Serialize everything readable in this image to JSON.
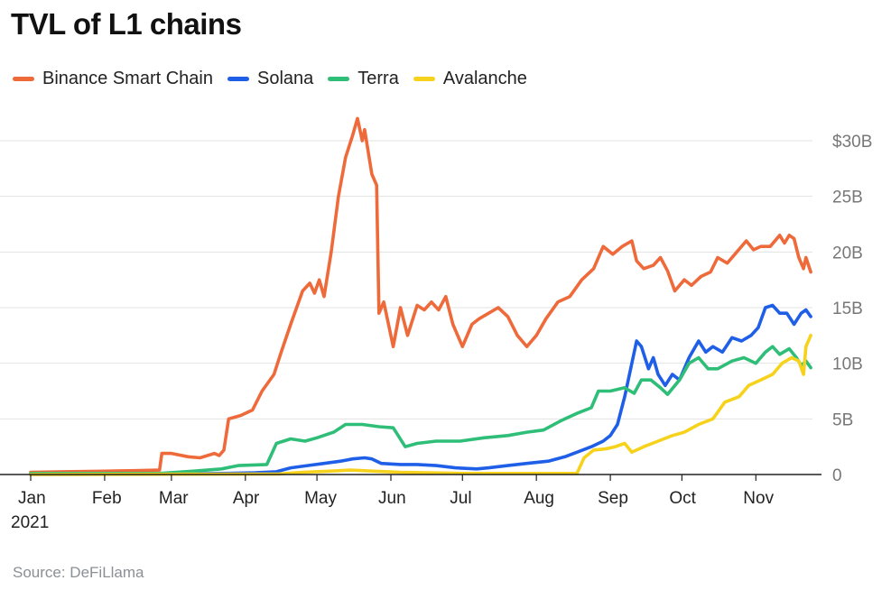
{
  "title": "TVL of L1 chains",
  "source": "Source: DeFiLlama",
  "colors": {
    "bsc": "#ef6a3a",
    "solana": "#1f5fe8",
    "terra": "#2fbe78",
    "avalanche": "#f7d21c",
    "grid": "#e3e3e3",
    "axis": "#222222",
    "tick": "#777777"
  },
  "chart_data": {
    "type": "line",
    "title": "TVL of L1 chains",
    "xlabel": "",
    "ylabel": "",
    "x_tick_labels": [
      "Jan",
      "Feb",
      "Mar",
      "Apr",
      "May",
      "Jun",
      "Jul",
      "Aug",
      "Sep",
      "Oct",
      "Nov"
    ],
    "x_year_label": "2021",
    "x_range": [
      "2021-01-01",
      "2021-11-27"
    ],
    "y_tick_labels": [
      "0",
      "5B",
      "10B",
      "15B",
      "20B",
      "25B",
      "$30B"
    ],
    "y_ticks": [
      0,
      5,
      10,
      15,
      20,
      25,
      30
    ],
    "ylim": [
      0,
      30
    ],
    "y_unit": "billion USD",
    "grid": true,
    "legend_position": "top-left",
    "series": [
      {
        "name": "Binance Smart Chain",
        "color": "#ef6a3a",
        "points": [
          [
            "2021-01-01",
            0.2
          ],
          [
            "2021-01-15",
            0.25
          ],
          [
            "2021-02-01",
            0.3
          ],
          [
            "2021-02-14",
            0.35
          ],
          [
            "2021-02-24",
            0.4
          ],
          [
            "2021-02-25",
            1.9
          ],
          [
            "2021-03-01",
            1.9
          ],
          [
            "2021-03-08",
            1.6
          ],
          [
            "2021-03-13",
            1.5
          ],
          [
            "2021-03-19",
            1.9
          ],
          [
            "2021-03-21",
            1.7
          ],
          [
            "2021-03-23",
            2.2
          ],
          [
            "2021-03-25",
            5.0
          ],
          [
            "2021-03-30",
            5.3
          ],
          [
            "2021-04-04",
            5.8
          ],
          [
            "2021-04-08",
            7.5
          ],
          [
            "2021-04-13",
            9.0
          ],
          [
            "2021-04-16",
            11.0
          ],
          [
            "2021-04-20",
            13.5
          ],
          [
            "2021-04-25",
            16.5
          ],
          [
            "2021-04-28",
            17.2
          ],
          [
            "2021-04-30",
            16.3
          ],
          [
            "2021-05-02",
            17.5
          ],
          [
            "2021-05-04",
            16.0
          ],
          [
            "2021-05-07",
            20.0
          ],
          [
            "2021-05-10",
            25.0
          ],
          [
            "2021-05-13",
            28.5
          ],
          [
            "2021-05-16",
            30.5
          ],
          [
            "2021-05-18",
            32.0
          ],
          [
            "2021-05-20",
            30.0
          ],
          [
            "2021-05-21",
            31.0
          ],
          [
            "2021-05-24",
            27.0
          ],
          [
            "2021-05-26",
            26.0
          ],
          [
            "2021-05-27",
            14.5
          ],
          [
            "2021-05-29",
            15.5
          ],
          [
            "2021-06-02",
            11.5
          ],
          [
            "2021-06-05",
            15.0
          ],
          [
            "2021-06-08",
            12.5
          ],
          [
            "2021-06-12",
            15.2
          ],
          [
            "2021-06-15",
            14.8
          ],
          [
            "2021-06-18",
            15.5
          ],
          [
            "2021-06-21",
            14.8
          ],
          [
            "2021-06-24",
            16.0
          ],
          [
            "2021-06-27",
            13.5
          ],
          [
            "2021-07-01",
            11.5
          ],
          [
            "2021-07-05",
            13.5
          ],
          [
            "2021-07-08",
            14.0
          ],
          [
            "2021-07-12",
            14.5
          ],
          [
            "2021-07-16",
            15.0
          ],
          [
            "2021-07-20",
            14.2
          ],
          [
            "2021-07-24",
            12.5
          ],
          [
            "2021-07-28",
            11.5
          ],
          [
            "2021-08-01",
            12.5
          ],
          [
            "2021-08-05",
            14.0
          ],
          [
            "2021-08-10",
            15.5
          ],
          [
            "2021-08-15",
            16.0
          ],
          [
            "2021-08-20",
            17.5
          ],
          [
            "2021-08-25",
            18.5
          ],
          [
            "2021-08-29",
            20.5
          ],
          [
            "2021-09-02",
            19.8
          ],
          [
            "2021-09-06",
            20.5
          ],
          [
            "2021-09-10",
            21.0
          ],
          [
            "2021-09-12",
            19.2
          ],
          [
            "2021-09-15",
            18.5
          ],
          [
            "2021-09-19",
            18.8
          ],
          [
            "2021-09-22",
            19.5
          ],
          [
            "2021-09-25",
            18.3
          ],
          [
            "2021-09-28",
            16.5
          ],
          [
            "2021-10-02",
            17.5
          ],
          [
            "2021-10-05",
            17.0
          ],
          [
            "2021-10-09",
            17.8
          ],
          [
            "2021-10-13",
            18.2
          ],
          [
            "2021-10-16",
            19.5
          ],
          [
            "2021-10-20",
            19.0
          ],
          [
            "2021-10-24",
            20.0
          ],
          [
            "2021-10-28",
            21.0
          ],
          [
            "2021-10-31",
            20.2
          ],
          [
            "2021-11-03",
            20.5
          ],
          [
            "2021-11-07",
            20.5
          ],
          [
            "2021-11-11",
            21.5
          ],
          [
            "2021-11-13",
            20.8
          ],
          [
            "2021-11-15",
            21.5
          ],
          [
            "2021-11-17",
            21.2
          ],
          [
            "2021-11-19",
            19.5
          ],
          [
            "2021-11-21",
            18.5
          ],
          [
            "2021-11-22",
            19.5
          ],
          [
            "2021-11-24",
            18.2
          ]
        ]
      },
      {
        "name": "Solana",
        "color": "#1f5fe8",
        "points": [
          [
            "2021-01-01",
            0.0
          ],
          [
            "2021-03-01",
            0.05
          ],
          [
            "2021-03-22",
            0.1
          ],
          [
            "2021-04-05",
            0.15
          ],
          [
            "2021-04-14",
            0.25
          ],
          [
            "2021-04-20",
            0.6
          ],
          [
            "2021-04-27",
            0.8
          ],
          [
            "2021-05-04",
            1.0
          ],
          [
            "2021-05-11",
            1.2
          ],
          [
            "2021-05-16",
            1.4
          ],
          [
            "2021-05-21",
            1.5
          ],
          [
            "2021-05-24",
            1.4
          ],
          [
            "2021-05-28",
            1.0
          ],
          [
            "2021-06-05",
            0.9
          ],
          [
            "2021-06-12",
            0.9
          ],
          [
            "2021-06-20",
            0.8
          ],
          [
            "2021-06-28",
            0.6
          ],
          [
            "2021-07-07",
            0.5
          ],
          [
            "2021-07-12",
            0.6
          ],
          [
            "2021-07-20",
            0.8
          ],
          [
            "2021-07-28",
            1.0
          ],
          [
            "2021-08-06",
            1.2
          ],
          [
            "2021-08-13",
            1.6
          ],
          [
            "2021-08-18",
            2.0
          ],
          [
            "2021-08-24",
            2.5
          ],
          [
            "2021-08-29",
            3.0
          ],
          [
            "2021-09-01",
            3.5
          ],
          [
            "2021-09-04",
            4.5
          ],
          [
            "2021-09-07",
            7.0
          ],
          [
            "2021-09-10",
            10.0
          ],
          [
            "2021-09-12",
            12.0
          ],
          [
            "2021-09-14",
            11.5
          ],
          [
            "2021-09-17",
            9.5
          ],
          [
            "2021-09-19",
            10.5
          ],
          [
            "2021-09-21",
            9.0
          ],
          [
            "2021-09-24",
            8.0
          ],
          [
            "2021-09-27",
            9.0
          ],
          [
            "2021-09-30",
            8.5
          ],
          [
            "2021-10-04",
            10.5
          ],
          [
            "2021-10-08",
            12.0
          ],
          [
            "2021-10-11",
            11.0
          ],
          [
            "2021-10-14",
            11.5
          ],
          [
            "2021-10-18",
            11.0
          ],
          [
            "2021-10-22",
            12.3
          ],
          [
            "2021-10-26",
            12.0
          ],
          [
            "2021-10-30",
            12.5
          ],
          [
            "2021-11-02",
            13.2
          ],
          [
            "2021-11-05",
            15.0
          ],
          [
            "2021-11-08",
            15.2
          ],
          [
            "2021-11-11",
            14.5
          ],
          [
            "2021-11-14",
            14.5
          ],
          [
            "2021-11-17",
            13.5
          ],
          [
            "2021-11-20",
            14.5
          ],
          [
            "2021-11-22",
            14.8
          ],
          [
            "2021-11-24",
            14.2
          ]
        ]
      },
      {
        "name": "Terra",
        "color": "#2fbe78",
        "points": [
          [
            "2021-01-01",
            0.1
          ],
          [
            "2021-02-24",
            0.1
          ],
          [
            "2021-03-10",
            0.3
          ],
          [
            "2021-03-22",
            0.5
          ],
          [
            "2021-03-29",
            0.8
          ],
          [
            "2021-04-10",
            0.9
          ],
          [
            "2021-04-14",
            2.8
          ],
          [
            "2021-04-20",
            3.2
          ],
          [
            "2021-04-26",
            3.0
          ],
          [
            "2021-05-01",
            3.3
          ],
          [
            "2021-05-08",
            3.8
          ],
          [
            "2021-05-13",
            4.5
          ],
          [
            "2021-05-20",
            4.5
          ],
          [
            "2021-05-27",
            4.3
          ],
          [
            "2021-06-02",
            4.2
          ],
          [
            "2021-06-07",
            2.5
          ],
          [
            "2021-06-12",
            2.8
          ],
          [
            "2021-06-20",
            3.0
          ],
          [
            "2021-06-30",
            3.0
          ],
          [
            "2021-07-10",
            3.3
          ],
          [
            "2021-07-20",
            3.5
          ],
          [
            "2021-07-28",
            3.8
          ],
          [
            "2021-08-04",
            4.0
          ],
          [
            "2021-08-11",
            4.8
          ],
          [
            "2021-08-18",
            5.5
          ],
          [
            "2021-08-24",
            6.0
          ],
          [
            "2021-08-27",
            7.5
          ],
          [
            "2021-09-01",
            7.5
          ],
          [
            "2021-09-07",
            7.8
          ],
          [
            "2021-09-11",
            7.3
          ],
          [
            "2021-09-14",
            8.5
          ],
          [
            "2021-09-18",
            8.5
          ],
          [
            "2021-09-22",
            7.8
          ],
          [
            "2021-09-25",
            7.2
          ],
          [
            "2021-09-30",
            8.5
          ],
          [
            "2021-10-04",
            10.0
          ],
          [
            "2021-10-08",
            10.5
          ],
          [
            "2021-10-12",
            9.5
          ],
          [
            "2021-10-16",
            9.5
          ],
          [
            "2021-10-22",
            10.2
          ],
          [
            "2021-10-27",
            10.5
          ],
          [
            "2021-11-01",
            10.0
          ],
          [
            "2021-11-05",
            11.0
          ],
          [
            "2021-11-08",
            11.5
          ],
          [
            "2021-11-11",
            10.8
          ],
          [
            "2021-11-15",
            11.3
          ],
          [
            "2021-11-18",
            10.5
          ],
          [
            "2021-11-20",
            9.8
          ],
          [
            "2021-11-22",
            10.2
          ],
          [
            "2021-11-24",
            9.6
          ]
        ]
      },
      {
        "name": "Avalanche",
        "color": "#f7d21c",
        "points": [
          [
            "2021-01-01",
            0.0
          ],
          [
            "2021-04-15",
            0.05
          ],
          [
            "2021-04-25",
            0.2
          ],
          [
            "2021-05-06",
            0.3
          ],
          [
            "2021-05-15",
            0.4
          ],
          [
            "2021-05-25",
            0.3
          ],
          [
            "2021-06-05",
            0.2
          ],
          [
            "2021-07-01",
            0.1
          ],
          [
            "2021-08-01",
            0.1
          ],
          [
            "2021-08-18",
            0.1
          ],
          [
            "2021-08-21",
            1.5
          ],
          [
            "2021-08-25",
            2.2
          ],
          [
            "2021-08-30",
            2.3
          ],
          [
            "2021-09-03",
            2.5
          ],
          [
            "2021-09-07",
            2.8
          ],
          [
            "2021-09-10",
            2.0
          ],
          [
            "2021-09-15",
            2.5
          ],
          [
            "2021-09-21",
            3.0
          ],
          [
            "2021-09-27",
            3.5
          ],
          [
            "2021-10-02",
            3.8
          ],
          [
            "2021-10-08",
            4.5
          ],
          [
            "2021-10-14",
            5.0
          ],
          [
            "2021-10-19",
            6.5
          ],
          [
            "2021-10-25",
            7.0
          ],
          [
            "2021-10-29",
            8.0
          ],
          [
            "2021-11-03",
            8.5
          ],
          [
            "2021-11-08",
            9.0
          ],
          [
            "2021-11-12",
            10.0
          ],
          [
            "2021-11-16",
            10.5
          ],
          [
            "2021-11-19",
            10.2
          ],
          [
            "2021-11-21",
            9.0
          ],
          [
            "2021-11-22",
            11.5
          ],
          [
            "2021-11-24",
            12.5
          ]
        ]
      }
    ]
  }
}
